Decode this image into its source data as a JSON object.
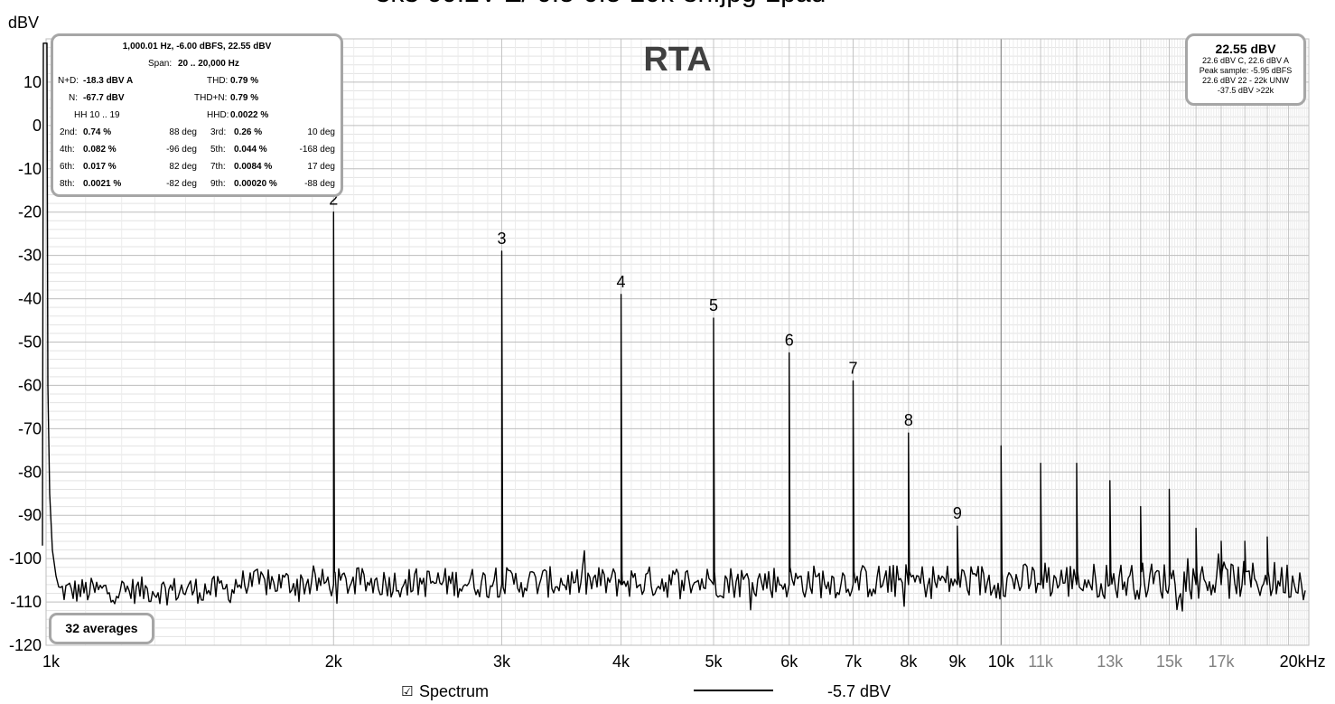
{
  "window": {
    "title_partial": "3k3 60.2V-Z/ 0.5-0.5-20k-8h.jpg-2pad"
  },
  "chart_data": {
    "type": "line",
    "title": "RTA",
    "ylabel": "dBV",
    "xlabel": "",
    "x_scale": "log",
    "xlim": [
      1000,
      21000
    ],
    "ylim": [
      -120,
      20
    ],
    "y_ticks": [
      {
        "value": 10,
        "label": "10"
      },
      {
        "value": 0,
        "label": "0"
      },
      {
        "value": -10,
        "label": "-10"
      },
      {
        "value": -20,
        "label": "-20"
      },
      {
        "value": -30,
        "label": "-30"
      },
      {
        "value": -40,
        "label": "-40"
      },
      {
        "value": -50,
        "label": "-50"
      },
      {
        "value": -60,
        "label": "-60"
      },
      {
        "value": -70,
        "label": "-70"
      },
      {
        "value": -80,
        "label": "-80"
      },
      {
        "value": -90,
        "label": "-90"
      },
      {
        "value": -100,
        "label": "-100"
      },
      {
        "value": -110,
        "label": "-110"
      },
      {
        "value": -120,
        "label": "-120"
      }
    ],
    "x_ticks": [
      {
        "value": 1000,
        "label": "1k",
        "major": true
      },
      {
        "value": 2000,
        "label": "2k",
        "major": true
      },
      {
        "value": 3000,
        "label": "3k",
        "major": true
      },
      {
        "value": 4000,
        "label": "4k",
        "major": true
      },
      {
        "value": 5000,
        "label": "5k",
        "major": true
      },
      {
        "value": 6000,
        "label": "6k",
        "major": true
      },
      {
        "value": 7000,
        "label": "7k",
        "major": true
      },
      {
        "value": 8000,
        "label": "8k",
        "major": true
      },
      {
        "value": 9000,
        "label": "9k",
        "major": true
      },
      {
        "value": 10000,
        "label": "10k",
        "major": true
      },
      {
        "value": 11000,
        "label": "11k",
        "major": false
      },
      {
        "value": 13000,
        "label": "13k",
        "major": false
      },
      {
        "value": 15000,
        "label": "15k",
        "major": false
      },
      {
        "value": 17000,
        "label": "17k",
        "major": false
      },
      {
        "value": 20000,
        "label": "20kHz",
        "major": true
      }
    ],
    "series": [
      {
        "name": "Spectrum",
        "color": "#000000",
        "noise_floor_dbv": -105,
        "fundamental": {
          "freq": 1000,
          "dbv": 22.55
        },
        "peaks": [
          {
            "freq": 2000,
            "dbv": -20,
            "label": "2"
          },
          {
            "freq": 3000,
            "dbv": -29,
            "label": "3"
          },
          {
            "freq": 4000,
            "dbv": -39,
            "label": "4"
          },
          {
            "freq": 5000,
            "dbv": -44.5,
            "label": "5"
          },
          {
            "freq": 6000,
            "dbv": -52.5,
            "label": "6"
          },
          {
            "freq": 7000,
            "dbv": -59,
            "label": "7"
          },
          {
            "freq": 8000,
            "dbv": -71,
            "label": "8"
          },
          {
            "freq": 9000,
            "dbv": -92.5,
            "label": "9"
          },
          {
            "freq": 10000,
            "dbv": -74,
            "label": ""
          },
          {
            "freq": 11000,
            "dbv": -78,
            "label": ""
          },
          {
            "freq": 12000,
            "dbv": -78,
            "label": ""
          },
          {
            "freq": 13000,
            "dbv": -82,
            "label": ""
          },
          {
            "freq": 14000,
            "dbv": -88,
            "label": ""
          },
          {
            "freq": 15000,
            "dbv": -84,
            "label": ""
          },
          {
            "freq": 16000,
            "dbv": -93,
            "label": ""
          },
          {
            "freq": 17000,
            "dbv": -96,
            "label": ""
          },
          {
            "freq": 18000,
            "dbv": -96,
            "label": ""
          },
          {
            "freq": 19000,
            "dbv": -95,
            "label": ""
          }
        ]
      }
    ],
    "grid": true
  },
  "distortion_panel": {
    "header": "1,000.01 Hz, -6.00 dBFS, 22.55 dBV",
    "span_label": "Span:",
    "span_value": "20 .. 20,000 Hz",
    "nd_label": "N+D:",
    "nd_value": "-18.3 dBV A",
    "thd_label": "THD:",
    "thd_value": "0.79 %",
    "n_label": "N:",
    "n_value": "-67.7 dBV",
    "thdn_label": "THD+N:",
    "thdn_value": "0.79 %",
    "hh_label": "HH 10 .. 19",
    "hhd_label": "HHD:",
    "hhd_value": "0.0022 %",
    "harmonics": [
      {
        "label": "2nd:",
        "value": "0.74 %",
        "phase": "88 deg"
      },
      {
        "label": "3rd:",
        "value": "0.26 %",
        "phase": "10 deg"
      },
      {
        "label": "4th:",
        "value": "0.082 %",
        "phase": "-96 deg"
      },
      {
        "label": "5th:",
        "value": "0.044 %",
        "phase": "-168 deg"
      },
      {
        "label": "6th:",
        "value": "0.017 %",
        "phase": "82 deg"
      },
      {
        "label": "7th:",
        "value": "0.0084 %",
        "phase": "17 deg"
      },
      {
        "label": "8th:",
        "value": "0.0021 %",
        "phase": "-82 deg"
      },
      {
        "label": "9th:",
        "value": "0.00020 %",
        "phase": "-88 deg"
      }
    ]
  },
  "level_panel": {
    "main": "22.55 dBV",
    "line1": "22.6 dBV C, 22.6 dBV A",
    "line2": "Peak sample: -5.95 dBFS",
    "line3": "22.6 dBV 22 - 22k UNW",
    "line4": "-37.5 dBV >22k"
  },
  "averages_label": "32 averages",
  "legend": {
    "checkbox_glyph": "☑",
    "label": "Spectrum",
    "value": "-5.7 dBV",
    "checked": true
  }
}
